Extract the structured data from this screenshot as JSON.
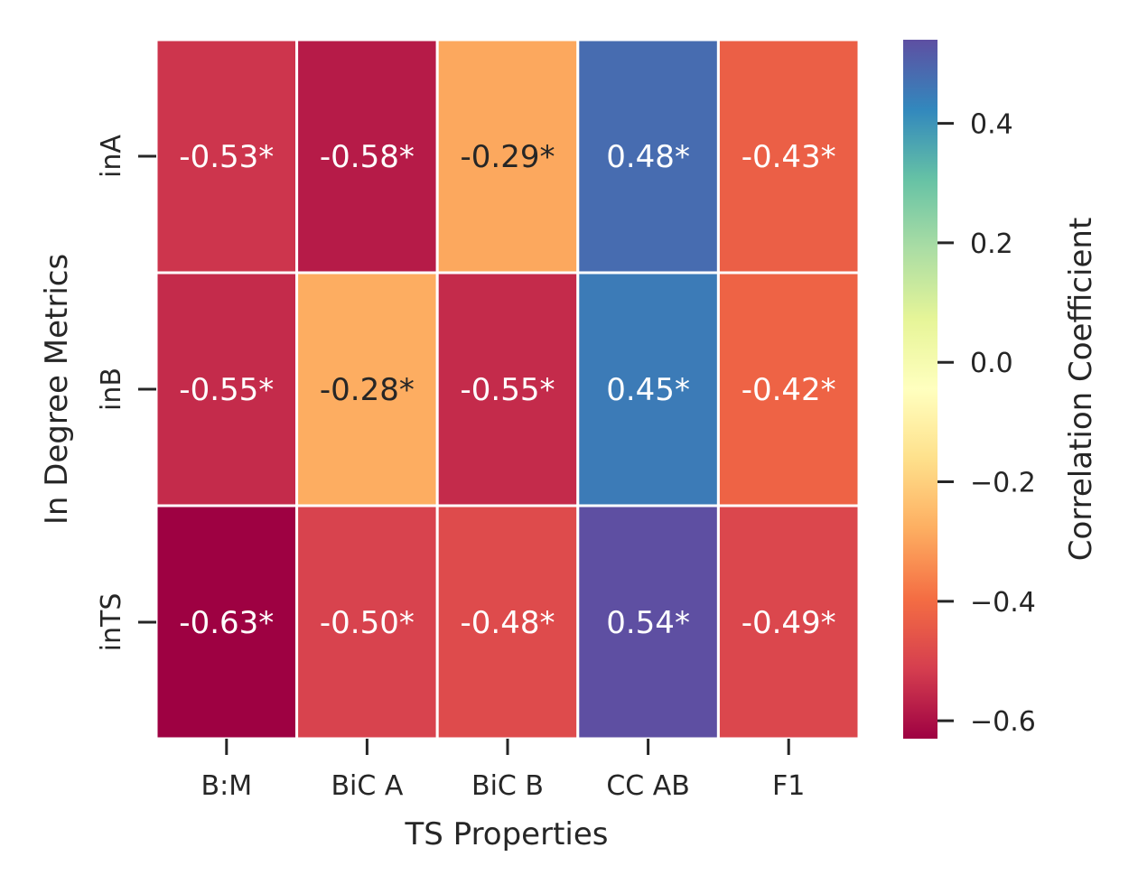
{
  "chart_data": {
    "type": "heatmap",
    "title": "",
    "xlabel": "TS Properties",
    "ylabel": "In Degree Metrics",
    "x_categories": [
      "B:M",
      "BiC A",
      "BiC B",
      "CC AB",
      "F1"
    ],
    "y_categories": [
      "inA",
      "inB",
      "inTS"
    ],
    "values": [
      [
        -0.53,
        -0.58,
        -0.29,
        0.48,
        -0.43
      ],
      [
        -0.55,
        -0.28,
        -0.55,
        0.45,
        -0.42
      ],
      [
        -0.63,
        -0.5,
        -0.48,
        0.54,
        -0.49
      ]
    ],
    "annotations": [
      [
        "-0.53*",
        "-0.58*",
        "-0.29*",
        "0.48*",
        "-0.43*"
      ],
      [
        "-0.55*",
        "-0.28*",
        "-0.55*",
        "0.45*",
        "-0.42*"
      ],
      [
        "-0.63*",
        "-0.50*",
        "-0.48*",
        "0.54*",
        "-0.49*"
      ]
    ],
    "colormap": "Spectral",
    "vmin": -0.63,
    "vmax": 0.54,
    "colorbar": {
      "label": "Correlation Coefficient",
      "ticks": [
        0.4,
        0.2,
        0.0,
        -0.2,
        -0.4,
        -0.6
      ],
      "tick_labels": [
        "0.4",
        "0.2",
        "0.0",
        "−0.2",
        "−0.4",
        "−0.6"
      ]
    }
  }
}
